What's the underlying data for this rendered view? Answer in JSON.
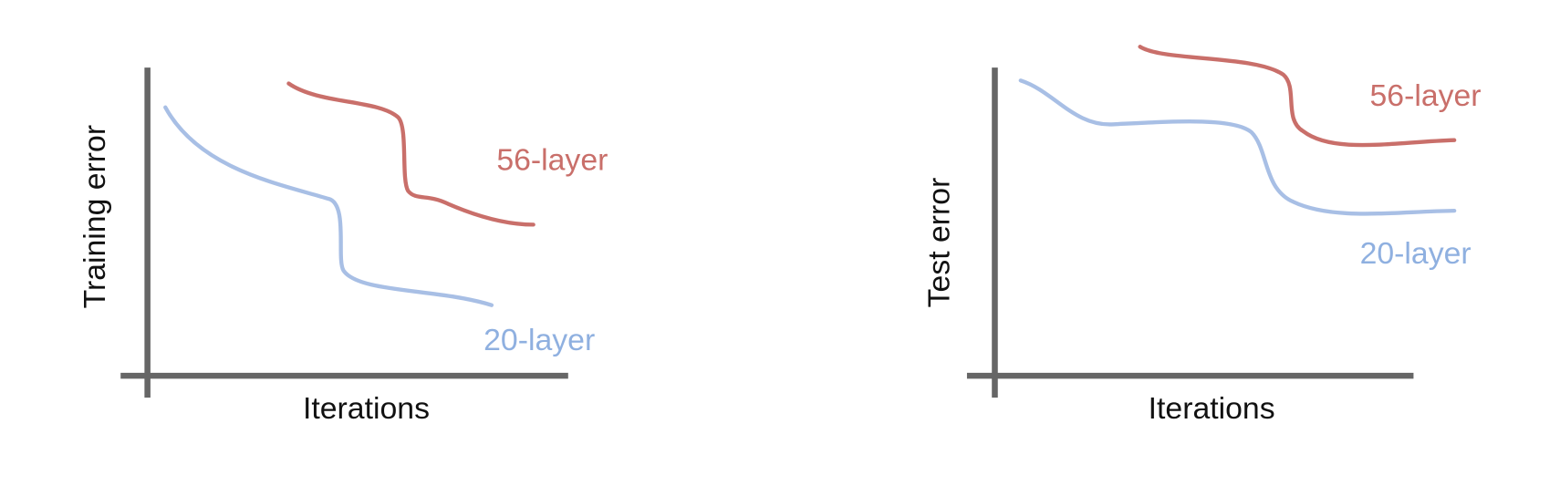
{
  "panels": [
    {
      "y_label": "Training error",
      "x_label": "Iterations",
      "series": [
        {
          "label": "56-layer"
        },
        {
          "label": "20-layer"
        }
      ]
    },
    {
      "y_label": "Test error",
      "x_label": "Iterations",
      "series": [
        {
          "label": "56-layer"
        },
        {
          "label": "20-layer"
        }
      ]
    }
  ]
}
